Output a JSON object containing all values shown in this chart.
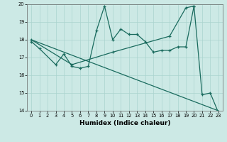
{
  "xlabel": "Humidex (Indice chaleur)",
  "bg_color": "#cce9e5",
  "line_color": "#1a6b5e",
  "xlim": [
    -0.5,
    23.5
  ],
  "ylim": [
    14,
    20
  ],
  "yticks": [
    14,
    15,
    16,
    17,
    18,
    19,
    20
  ],
  "xticks": [
    0,
    1,
    2,
    3,
    4,
    5,
    6,
    7,
    8,
    9,
    10,
    11,
    12,
    13,
    14,
    15,
    16,
    17,
    18,
    19,
    20,
    21,
    22,
    23
  ],
  "series1_x": [
    0,
    1,
    3,
    4,
    5,
    6,
    7,
    8,
    9,
    10,
    11,
    12,
    13,
    14,
    15,
    16,
    17,
    18,
    19,
    20,
    21,
    22,
    23
  ],
  "series1_y": [
    17.9,
    17.5,
    16.6,
    17.2,
    16.5,
    16.4,
    16.5,
    18.5,
    19.9,
    18.0,
    18.6,
    18.3,
    18.3,
    17.9,
    17.3,
    17.4,
    17.4,
    17.6,
    17.6,
    19.9,
    14.9,
    15.0,
    13.9
  ],
  "series2_x": [
    0,
    5,
    10,
    17,
    19,
    20
  ],
  "series2_y": [
    18.0,
    16.6,
    17.3,
    18.2,
    19.8,
    19.9
  ],
  "series3_x": [
    0,
    23
  ],
  "series3_y": [
    18.0,
    14.0
  ],
  "grid_color": "#aad4cf",
  "xlabel_fontsize": 6.5,
  "tick_fontsize": 4.8
}
